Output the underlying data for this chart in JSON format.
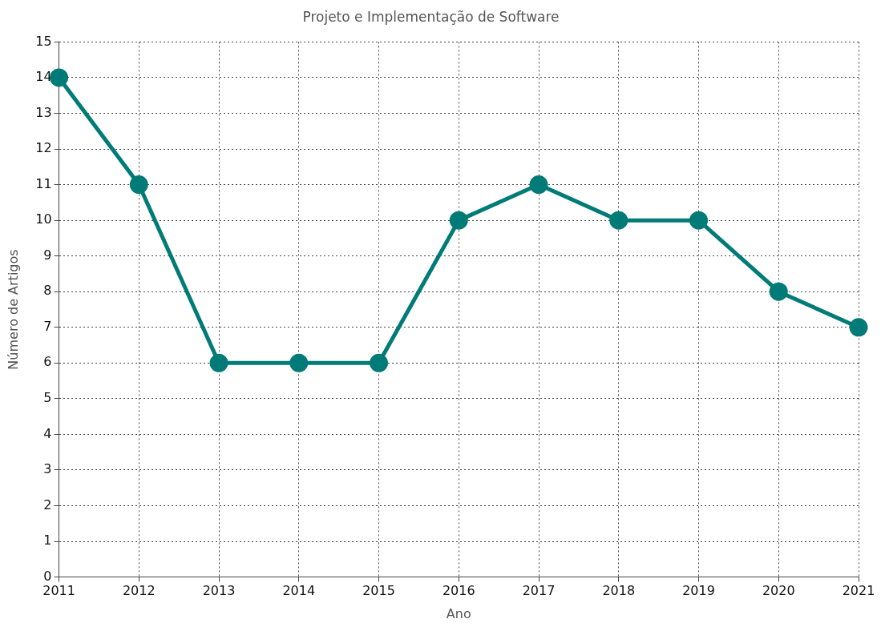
{
  "chart_data": {
    "type": "line",
    "title": "Projeto e Implementação de Software",
    "xlabel": "Ano",
    "ylabel": "Número de Artigos",
    "categories": [
      "2011",
      "2012",
      "2013",
      "2014",
      "2015",
      "2016",
      "2017",
      "2018",
      "2019",
      "2020",
      "2021"
    ],
    "series": [
      {
        "color": "#007b77",
        "values": [
          14,
          11,
          6,
          6,
          6,
          10,
          11,
          10,
          10,
          8,
          7
        ]
      }
    ],
    "ylim": [
      0,
      15
    ],
    "yticks": [
      0,
      1,
      2,
      3,
      4,
      5,
      6,
      7,
      8,
      9,
      10,
      11,
      12,
      13,
      14,
      15
    ],
    "grid": true,
    "legend": false,
    "marker": "circle",
    "line_style": "solid"
  }
}
